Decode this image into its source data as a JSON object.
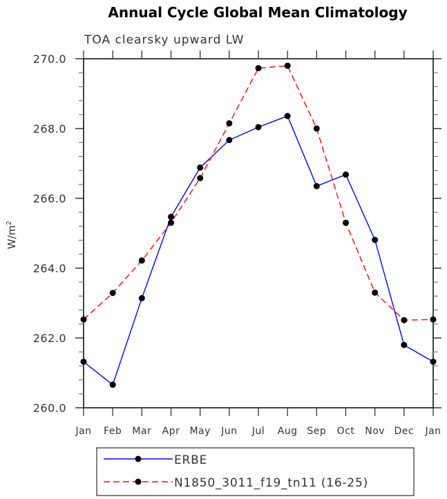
{
  "chart_data": {
    "type": "line",
    "title": "Annual Cycle Global Mean Climatology",
    "subtitle": "TOA clearsky upward LW",
    "xlabel": "",
    "ylabel": "W/m",
    "ylabel_sup": "2",
    "categories": [
      "Jan",
      "Feb",
      "Mar",
      "Apr",
      "May",
      "Jun",
      "Jul",
      "Aug",
      "Sep",
      "Oct",
      "Nov",
      "Dec",
      "Jan"
    ],
    "ylim": [
      260,
      270
    ],
    "yticks": [
      "260.0",
      "262.0",
      "264.0",
      "266.0",
      "268.0",
      "270.0"
    ],
    "grid": false,
    "legend_position": "bottom",
    "series": [
      {
        "name": "ERBE",
        "color": "#0000ff",
        "dash": "solid",
        "values": [
          261.32,
          260.66,
          263.14,
          265.47,
          266.88,
          267.67,
          268.04,
          268.36,
          266.35,
          266.68,
          264.81,
          261.8,
          261.32
        ]
      },
      {
        "name": "N1850_3011_f19_tn11 (16-25)",
        "color": "#ff0000",
        "dash": "dashed",
        "values": [
          262.53,
          263.29,
          264.22,
          265.3,
          266.58,
          268.15,
          269.73,
          269.8,
          268.0,
          265.3,
          263.3,
          262.51,
          262.53
        ]
      }
    ]
  }
}
